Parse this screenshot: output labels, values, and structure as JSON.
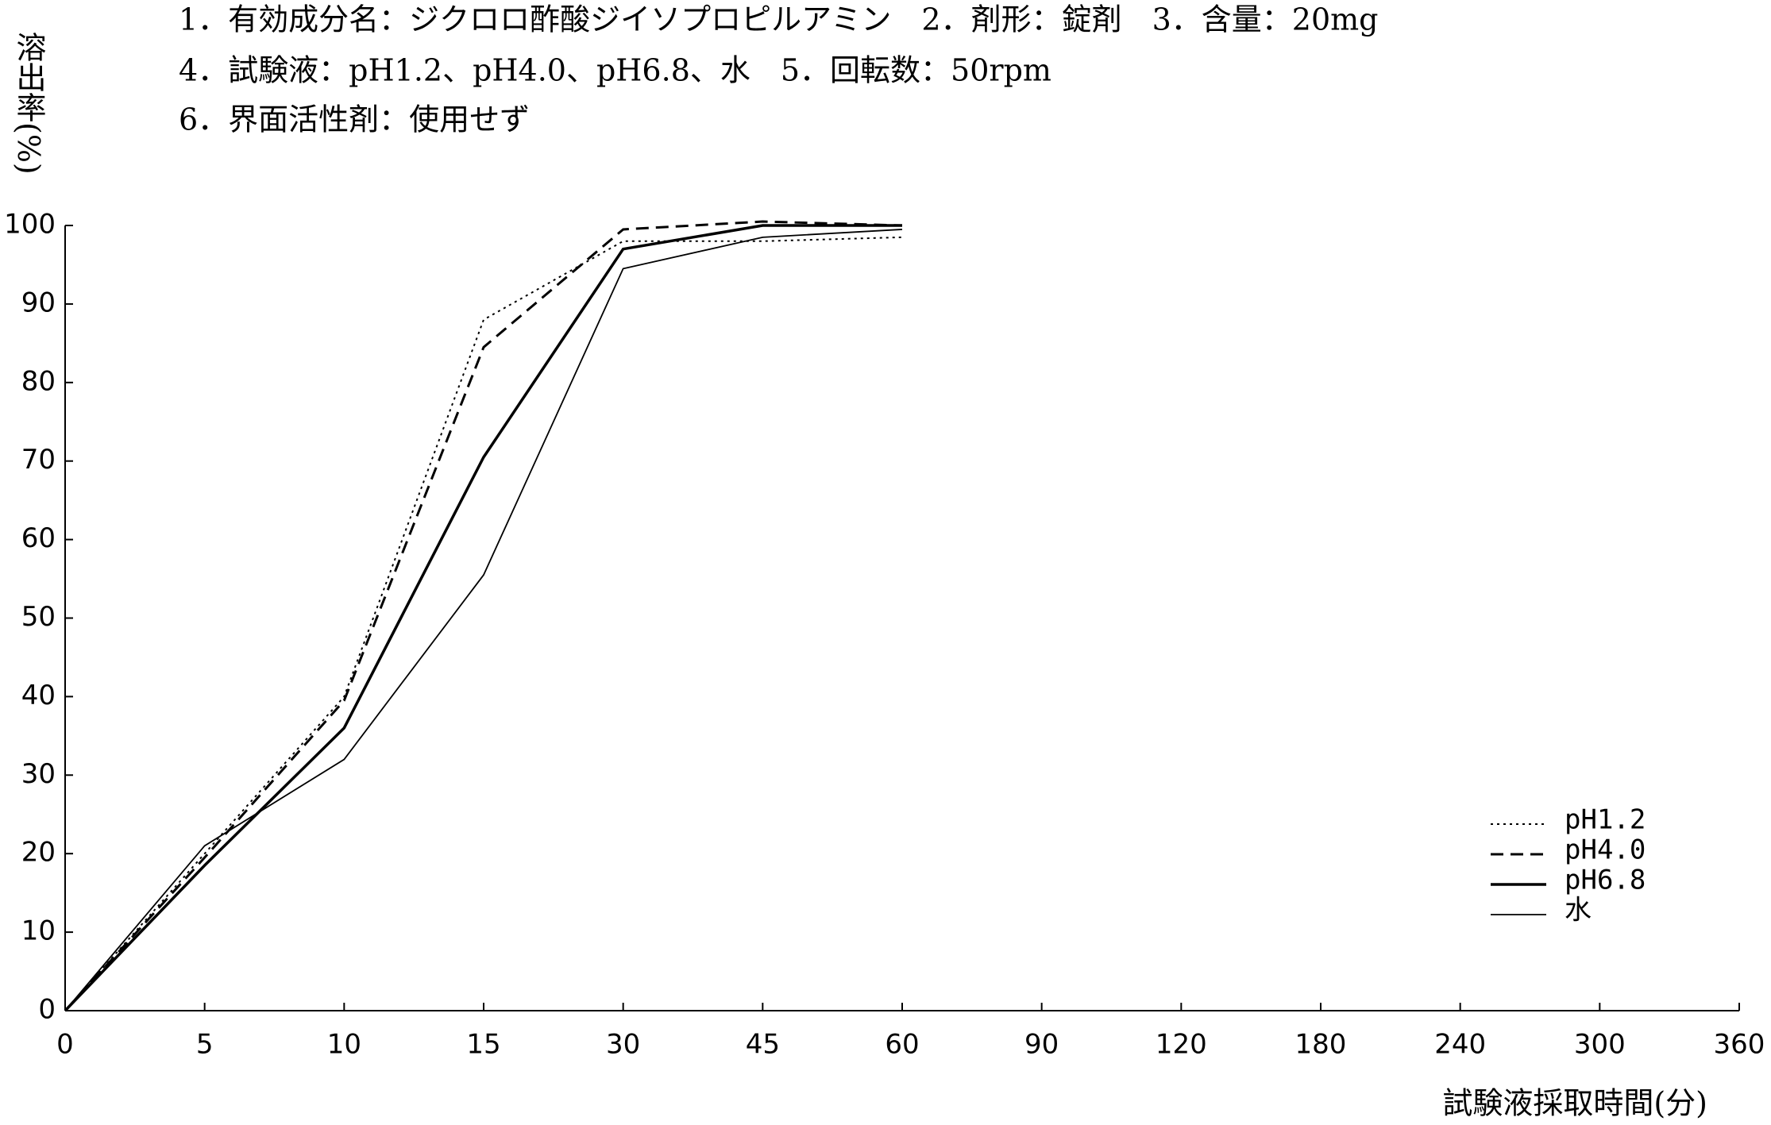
{
  "chart_data": {
    "type": "line",
    "notes": [
      "1．有効成分名：ジクロロ酢酸ジイソプロピルアミン　2．剤形：錠剤　3．含量：20mg",
      "4．試験液：pH1.2、pH4.0、pH6.8、水　5．回転数：50rpm",
      "6．界面活性剤：使用せず"
    ],
    "y_label": "溶出率(%)",
    "x_label": "試験液採取時間(分)",
    "categories": [
      "0",
      "5",
      "10",
      "15",
      "30",
      "45",
      "60",
      "90",
      "120",
      "180",
      "240",
      "300",
      "360"
    ],
    "series": [
      {
        "name": "pH1.2",
        "color": "#000",
        "style": "dotted",
        "width": 2,
        "values": [
          0,
          20,
          40,
          88,
          98,
          98,
          98.5,
          null,
          null,
          null,
          null,
          null,
          null
        ]
      },
      {
        "name": "pH4.0",
        "color": "#000",
        "style": "dashed",
        "width": 3,
        "values": [
          0,
          19.5,
          39.5,
          84.5,
          99.5,
          100.5,
          100,
          null,
          null,
          null,
          null,
          null,
          null
        ]
      },
      {
        "name": "pH6.8",
        "color": "#000",
        "style": "solid",
        "width": 3.5,
        "values": [
          0,
          18.5,
          36,
          70.5,
          97,
          100,
          100,
          null,
          null,
          null,
          null,
          null,
          null
        ]
      },
      {
        "name": "水",
        "color": "#000",
        "style": "solid",
        "width": 1.8,
        "values": [
          0,
          21,
          32,
          55.5,
          94.5,
          98.5,
          99.5,
          null,
          null,
          null,
          null,
          null,
          null
        ]
      }
    ],
    "ylim": [
      0,
      100
    ],
    "yticks": [
      0,
      10,
      20,
      30,
      40,
      50,
      60,
      70,
      80,
      90,
      100
    ]
  }
}
